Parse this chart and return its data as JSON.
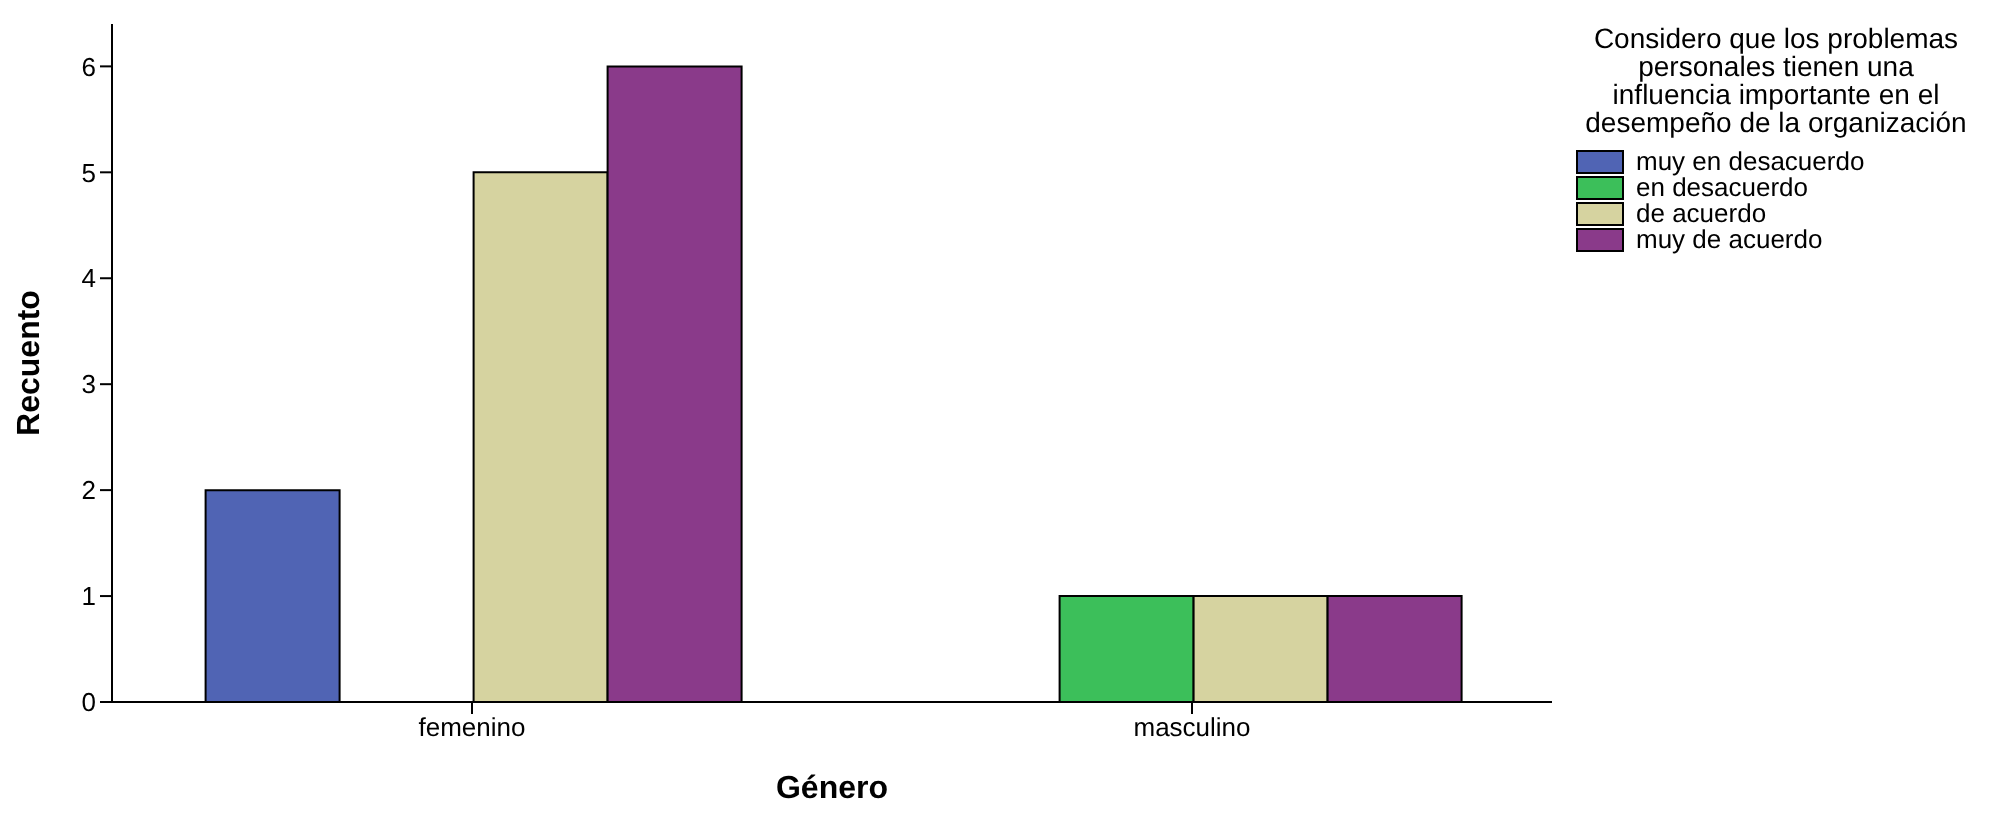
{
  "chart_data": {
    "type": "bar",
    "xlabel": "Género",
    "ylabel": "Recuento",
    "legend_title": "Considero que los problemas personales tienen una influencia importante en el desempeño de la organización",
    "categories": [
      "femenino",
      "masculino"
    ],
    "series": [
      {
        "name": "muy en desacuerdo",
        "color": "#5064b4",
        "values": [
          2,
          null
        ]
      },
      {
        "name": "en desacuerdo",
        "color": "#3cbf5a",
        "values": [
          null,
          1
        ]
      },
      {
        "name": "de acuerdo",
        "color": "#d6d3a0",
        "values": [
          5,
          1
        ]
      },
      {
        "name": "muy de acuerdo",
        "color": "#8a3a8a",
        "values": [
          6,
          1
        ]
      }
    ],
    "ylim": [
      0,
      6.4
    ],
    "yticks": [
      0,
      1,
      2,
      3,
      4,
      5,
      6
    ],
    "grid": false,
    "legend": "right"
  }
}
